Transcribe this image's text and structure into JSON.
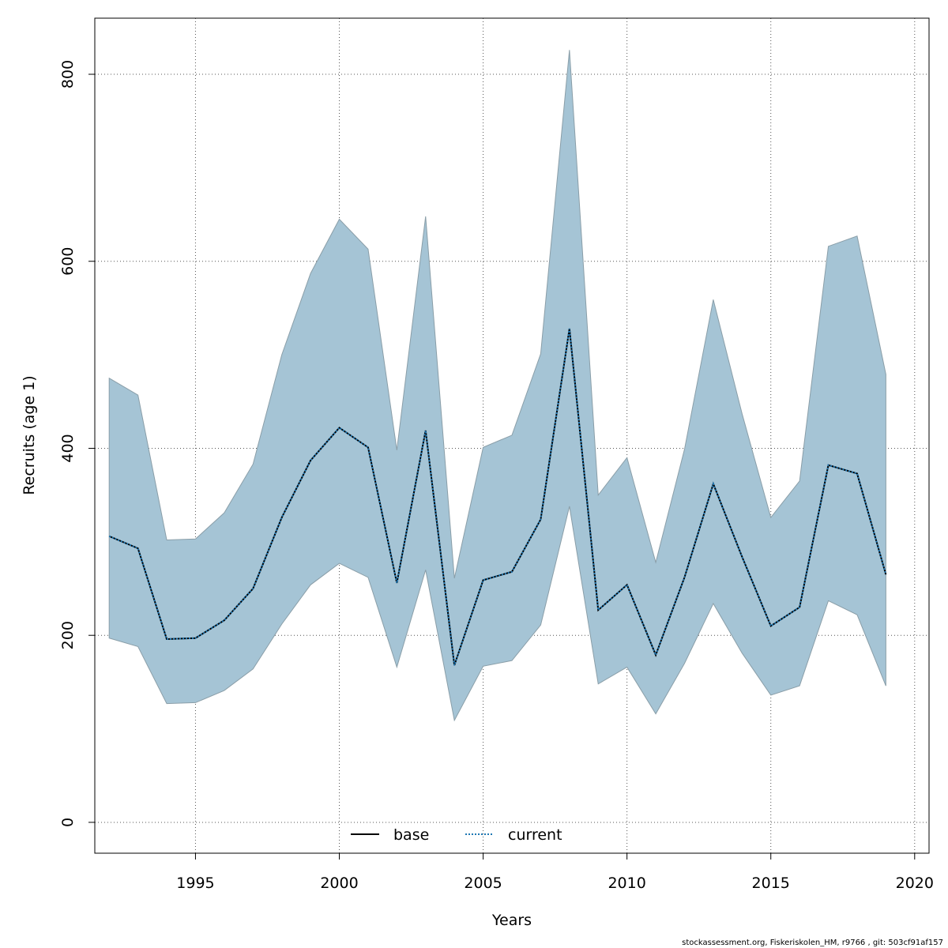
{
  "chart_data": {
    "type": "line",
    "xlabel": "Years",
    "ylabel": "Recruits (age 1)",
    "xlim": [
      1991.5,
      2020.5
    ],
    "ylim": [
      -33,
      860
    ],
    "x_ticks": [
      1995,
      2000,
      2005,
      2010,
      2015,
      2020
    ],
    "y_ticks": [
      0,
      200,
      400,
      600,
      800
    ],
    "grid": true,
    "legend": {
      "position": "bottom-center",
      "entries": [
        "base",
        "current"
      ]
    },
    "colors": {
      "band_fill": "#a5c4d5",
      "band_stroke": "#8a9ea8",
      "base_line": "#000000",
      "current_line": "#1f78b4",
      "grid": "#555555"
    },
    "x": [
      1992,
      1993,
      1994,
      1995,
      1996,
      1997,
      1998,
      1999,
      2000,
      2001,
      2002,
      2003,
      2004,
      2005,
      2006,
      2007,
      2008,
      2009,
      2010,
      2011,
      2012,
      2013,
      2014,
      2015,
      2016,
      2017,
      2018,
      2019
    ],
    "series": [
      {
        "name": "base",
        "style": "solid",
        "values": [
          306,
          293,
          196,
          197,
          216,
          250,
          326,
          387,
          422,
          401,
          256,
          419,
          168,
          259,
          268,
          324,
          528,
          227,
          254,
          179,
          262,
          362,
          284,
          210,
          230,
          382,
          373,
          265
        ]
      },
      {
        "name": "current",
        "style": "dotted",
        "values": [
          306,
          293,
          196,
          197,
          216,
          250,
          326,
          387,
          422,
          401,
          256,
          419,
          168,
          259,
          268,
          324,
          528,
          227,
          254,
          179,
          262,
          362,
          284,
          210,
          230,
          382,
          373,
          265
        ]
      }
    ],
    "band": {
      "upper": [
        475,
        457,
        302,
        303,
        331,
        383,
        500,
        587,
        645,
        613,
        398,
        648,
        261,
        401,
        414,
        501,
        826,
        350,
        390,
        278,
        399,
        559,
        437,
        326,
        365,
        616,
        627,
        479
      ],
      "lower": [
        197,
        188,
        127,
        128,
        141,
        164,
        212,
        254,
        277,
        262,
        166,
        270,
        109,
        167,
        173,
        211,
        338,
        148,
        166,
        116,
        170,
        234,
        181,
        136,
        146,
        237,
        222,
        146
      ]
    }
  },
  "footer": "stockassessment.org, Fiskeriskolen_HM, r9766 , git: 503cf91af157"
}
